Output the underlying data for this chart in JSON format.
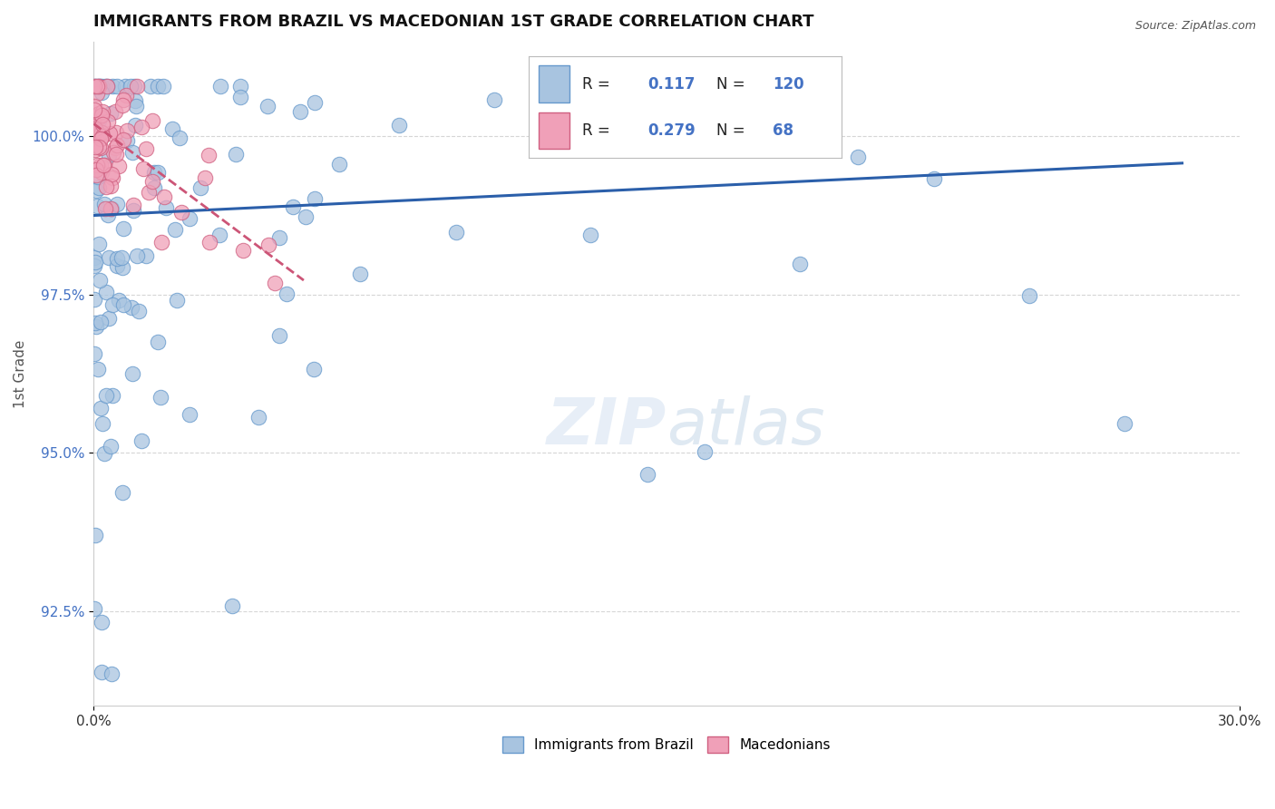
{
  "title": "IMMIGRANTS FROM BRAZIL VS MACEDONIAN 1ST GRADE CORRELATION CHART",
  "source": "Source: ZipAtlas.com",
  "ylabel": "1st Grade",
  "xlim": [
    0.0,
    30.0
  ],
  "ylim": [
    91.0,
    101.5
  ],
  "yticks": [
    92.5,
    95.0,
    97.5,
    100.0
  ],
  "ytick_labels": [
    "92.5%",
    "95.0%",
    "97.5%",
    "100.0%"
  ],
  "xticks": [
    0.0,
    30.0
  ],
  "xtick_labels": [
    "0.0%",
    "30.0%"
  ],
  "brazil_color": "#a8c4e0",
  "brazil_edge": "#6699cc",
  "macedonian_color": "#f0a0b8",
  "macedonian_edge": "#d06080",
  "brazil_R": 0.117,
  "brazil_N": 120,
  "macedonian_R": 0.279,
  "macedonian_N": 68,
  "trend_blue": "#2b5faa",
  "trend_pink": "#cc5577",
  "label_color": "#4472c4",
  "background_color": "#ffffff",
  "grid_color": "#cccccc"
}
